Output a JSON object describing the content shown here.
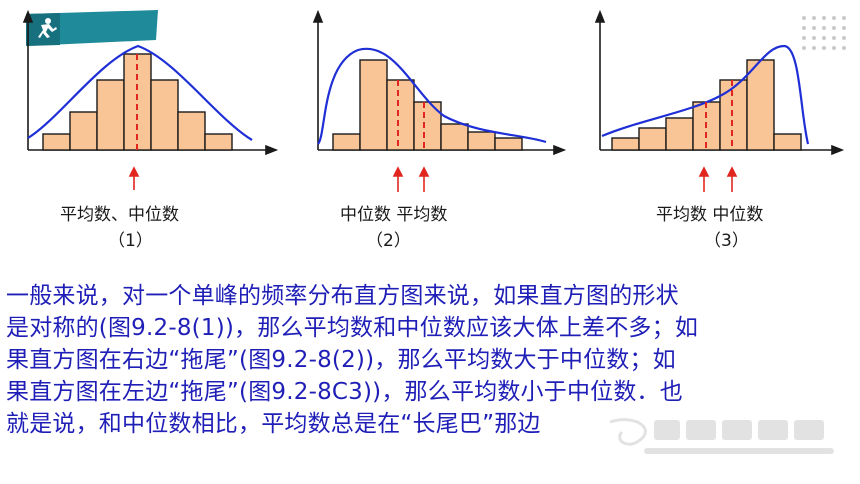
{
  "figures": [
    {
      "caption": "平均数、中位数",
      "number": "（1）"
    },
    {
      "caption": "中位数 平均数",
      "number": "（2）"
    },
    {
      "caption": "平均数 中位数",
      "number": "（3）"
    }
  ],
  "paragraph": {
    "line1": "一般来说，对一个单峰的频率分布直方图来说，如果直方图的形状",
    "line2": "是对称的(图9.2-8(1))，那么平均数和中位数应该大体上差不多；如",
    "line3": "果直方图在右边“拖尾”(图9.2-8(2))，那么平均数大于中位数；如",
    "line4": "果直方图在左边“拖尾”(图9.2-8C3))，那么平均数小于中位数．也",
    "line5": "就是说，和中位数相比，平均数总是在“长尾巴”那边"
  },
  "colors": {
    "bar_fill": "#f9c596",
    "bar_stroke": "#1a1a1a",
    "curve": "#1f2fd6",
    "median_mean_line": "#e0261f",
    "arrow": "#e0261f",
    "text_blue": "#1f1fb8",
    "badge": "#1f8a9a"
  },
  "icons": {
    "logo": "running-person-icon",
    "decor": "dot-grid-icon",
    "watermark": "21cnjy-watermark"
  }
}
